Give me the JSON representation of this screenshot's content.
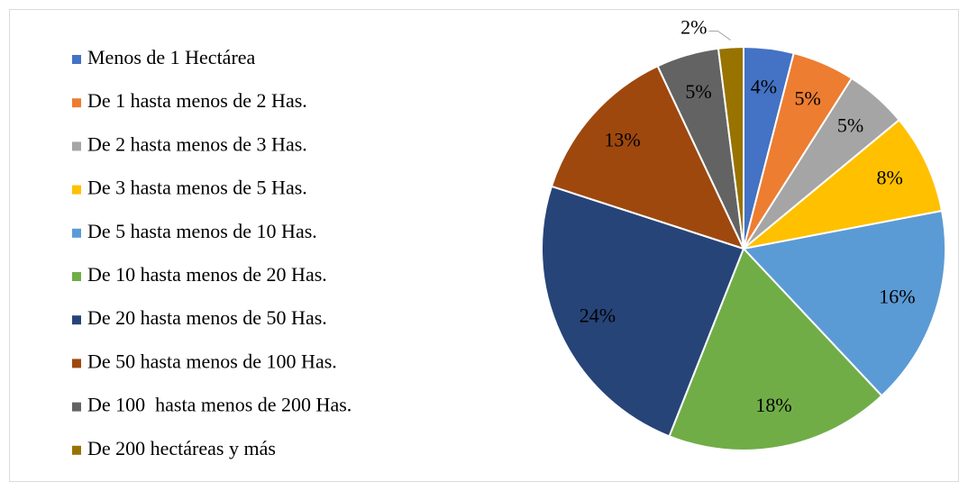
{
  "chart_data": {
    "type": "pie",
    "categories": [
      "Menos de 1 Hectárea",
      "De 1 hasta menos de 2 Has.",
      "De 2 hasta menos de 3 Has.",
      "De 3 hasta menos de 5 Has.",
      "De 5 hasta menos de 10 Has.",
      "De 10 hasta menos de 20 Has.",
      "De 20 hasta menos de 50 Has.",
      "De 50 hasta menos de 100 Has.",
      "De 100  hasta menos de 200 Has.",
      "De 200 hectáreas y más"
    ],
    "values": [
      4,
      5,
      5,
      8,
      16,
      18,
      24,
      13,
      5,
      2
    ],
    "value_labels": [
      "4%",
      "5%",
      "5%",
      "8%",
      "16%",
      "18%",
      "24%",
      "13%",
      "5%",
      "2%"
    ],
    "colors": [
      "#4472c4",
      "#ed7d31",
      "#a5a5a5",
      "#ffc000",
      "#5b9bd5",
      "#70ad47",
      "#264478",
      "#9e480e",
      "#636363",
      "#997300"
    ],
    "legend": "left"
  }
}
